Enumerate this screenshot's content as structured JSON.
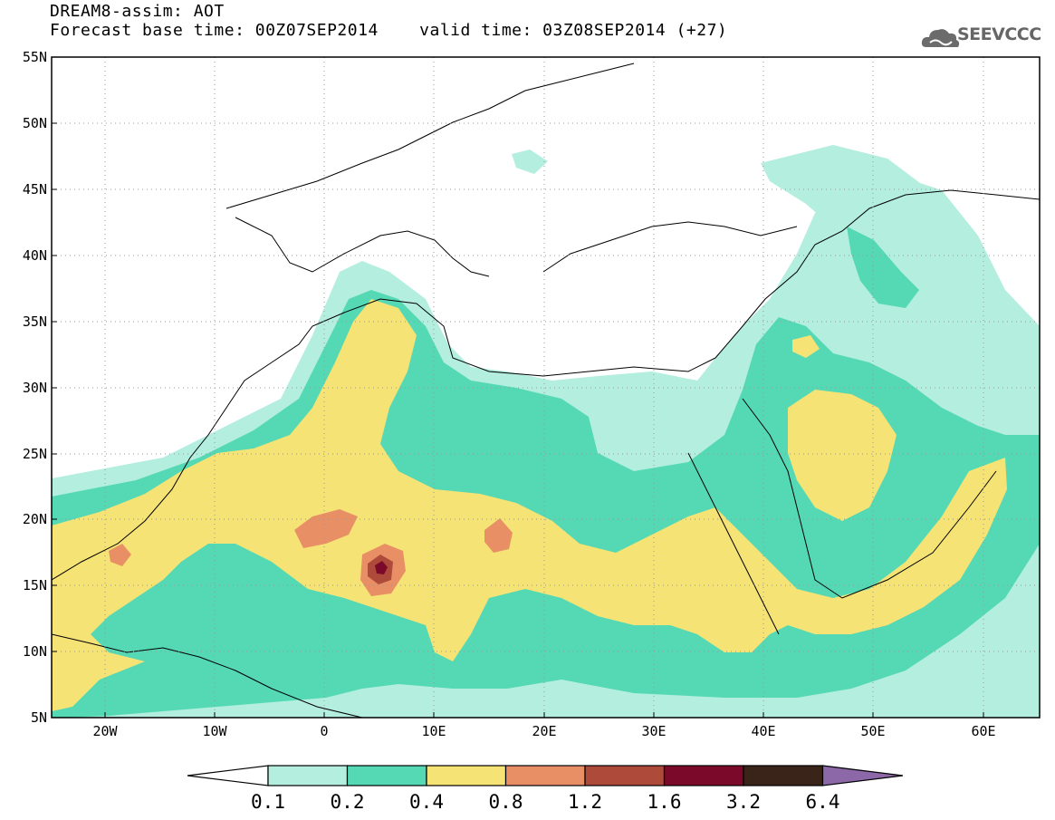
{
  "header": {
    "title": "DREAM8-assim: AOT",
    "forecast_base": "Forecast base time: 00Z07SEP2014",
    "valid_time": "valid time: 03Z08SEP2014 (+27)"
  },
  "logo": {
    "text": "SEEVCCC",
    "icon": "cloud-icon"
  },
  "map": {
    "lon_range": [
      -25,
      65
    ],
    "lat_range": [
      5,
      55
    ],
    "lon_labels": [
      "20W",
      "10W",
      "0",
      "10E",
      "20E",
      "30E",
      "40E",
      "50E",
      "60E"
    ],
    "lat_labels": [
      "55N",
      "50N",
      "45N",
      "40N",
      "35N",
      "30N",
      "25N",
      "20N",
      "15N",
      "10N",
      "5N"
    ]
  },
  "colorbar": {
    "labels": [
      "0.1",
      "0.2",
      "0.4",
      "0.8",
      "1.2",
      "1.6",
      "3.2",
      "6.4"
    ],
    "colors": [
      "#ffffff",
      "#b3eedf",
      "#55d9b4",
      "#f5e375",
      "#e88f65",
      "#ad4a3a",
      "#7b0a2a",
      "#3a2419",
      "#8c68a8"
    ]
  }
}
